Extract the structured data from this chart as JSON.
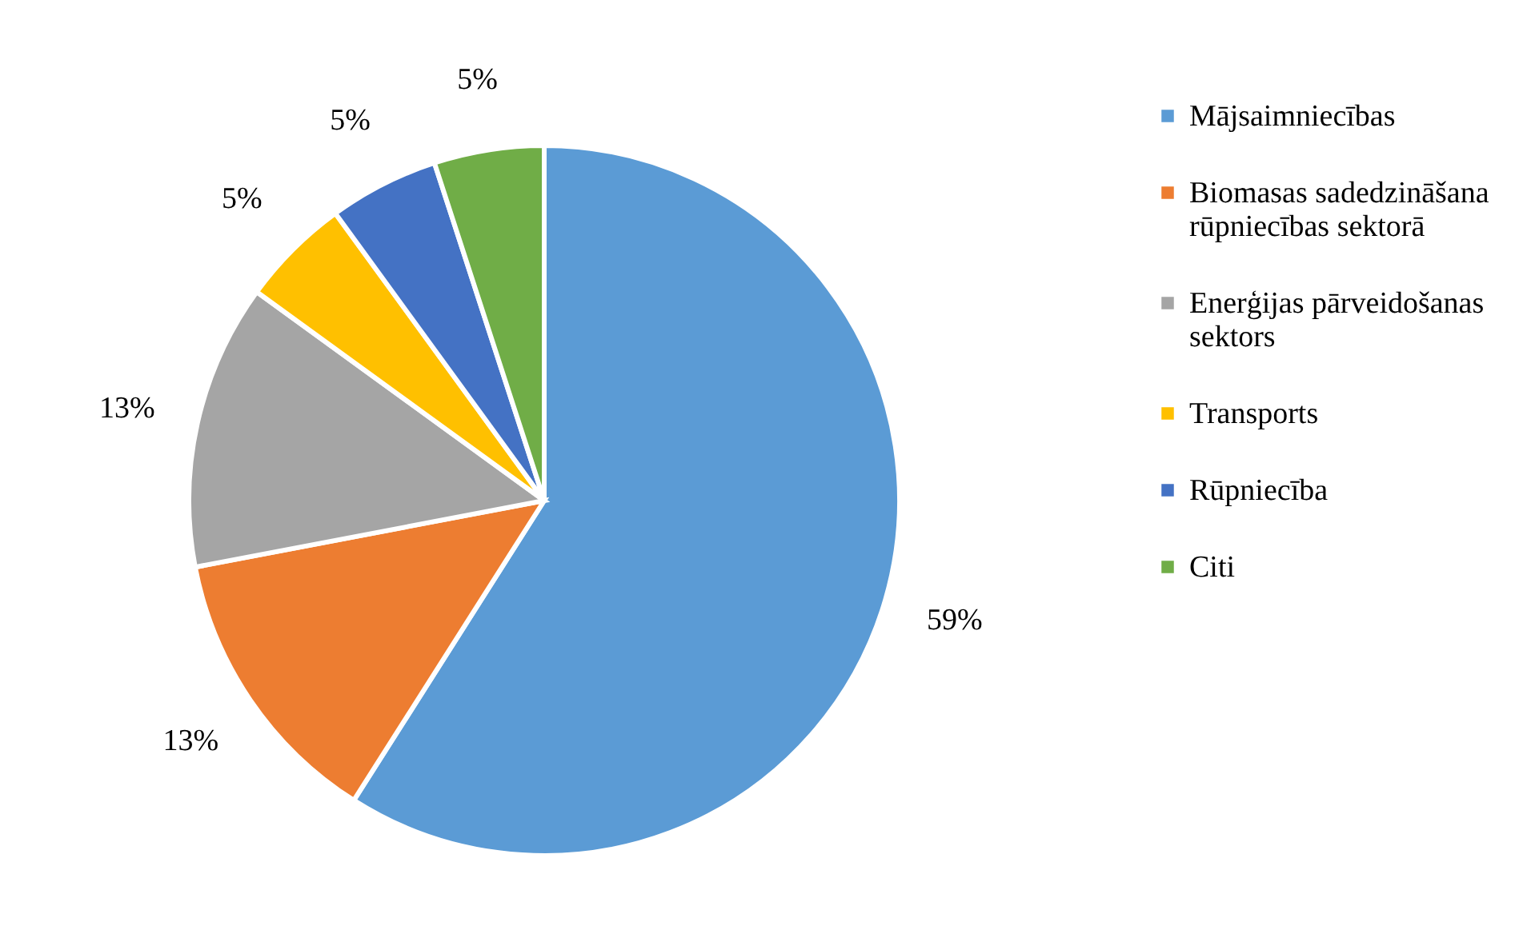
{
  "chart_data": {
    "type": "pie",
    "categories": [
      "Mājsaimniecības",
      "Biomasas sadedzināšana rūpniecības sektorā",
      "Enerģijas pārveidošanas sektors",
      "Transports",
      "Rūpniecība",
      "Citi"
    ],
    "values": [
      59,
      13,
      13,
      5,
      5,
      5
    ],
    "colors": [
      "#5b9bd5",
      "#ed7d31",
      "#a5a5a5",
      "#ffc000",
      "#4472c4",
      "#70ad47"
    ],
    "value_labels": [
      "59%",
      "13%",
      "13%",
      "5%",
      "5%",
      "5%"
    ],
    "legend": "right"
  }
}
